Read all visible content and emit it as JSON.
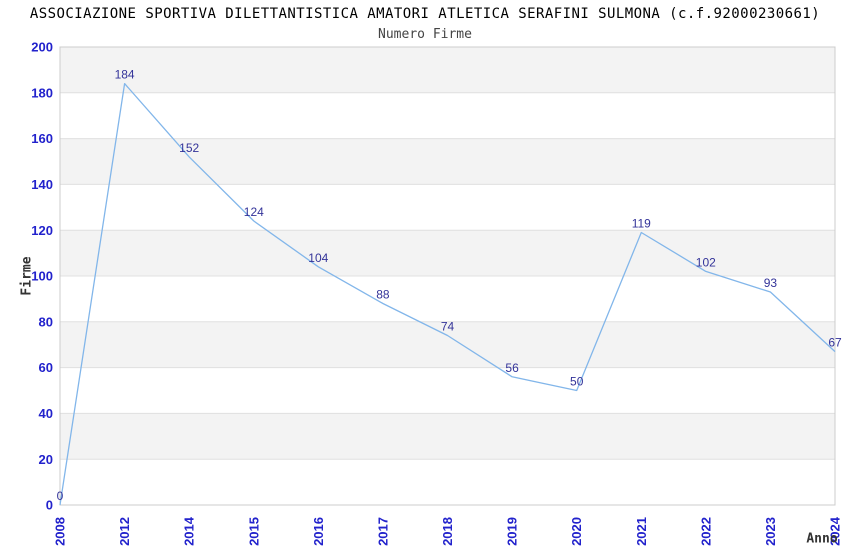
{
  "chart_data": {
    "type": "line",
    "title": "ASSOCIAZIONE SPORTIVA DILETTANTISTICA AMATORI ATLETICA SERAFINI SULMONA (c.f.92000230661)",
    "subtitle": "Numero Firme",
    "xlabel": "Anno",
    "ylabel": "Firme",
    "categories": [
      "2008",
      "2012",
      "2014",
      "2015",
      "2016",
      "2017",
      "2018",
      "2019",
      "2020",
      "2021",
      "2022",
      "2023",
      "2024"
    ],
    "values": [
      0,
      184,
      152,
      124,
      104,
      88,
      74,
      56,
      50,
      119,
      102,
      93,
      67
    ],
    "ylim": [
      0,
      200
    ],
    "ytick_step": 20,
    "yticks": [
      0,
      20,
      40,
      60,
      80,
      100,
      120,
      140,
      160,
      180,
      200
    ],
    "grid": true,
    "legend": "none",
    "x_tick_rotation": -90,
    "data_labels_shown": true,
    "colors": {
      "line": "#82B6EA",
      "tick_label": "#2222CC",
      "data_label": "#333399",
      "band_fill": "#F3F3F3",
      "grid_line": "#E0E0E0",
      "plot_border": "#CCCCCC",
      "title": "#000000",
      "subtitle": "#444444",
      "axis_title": "#333333",
      "background": "#FFFFFF"
    }
  }
}
